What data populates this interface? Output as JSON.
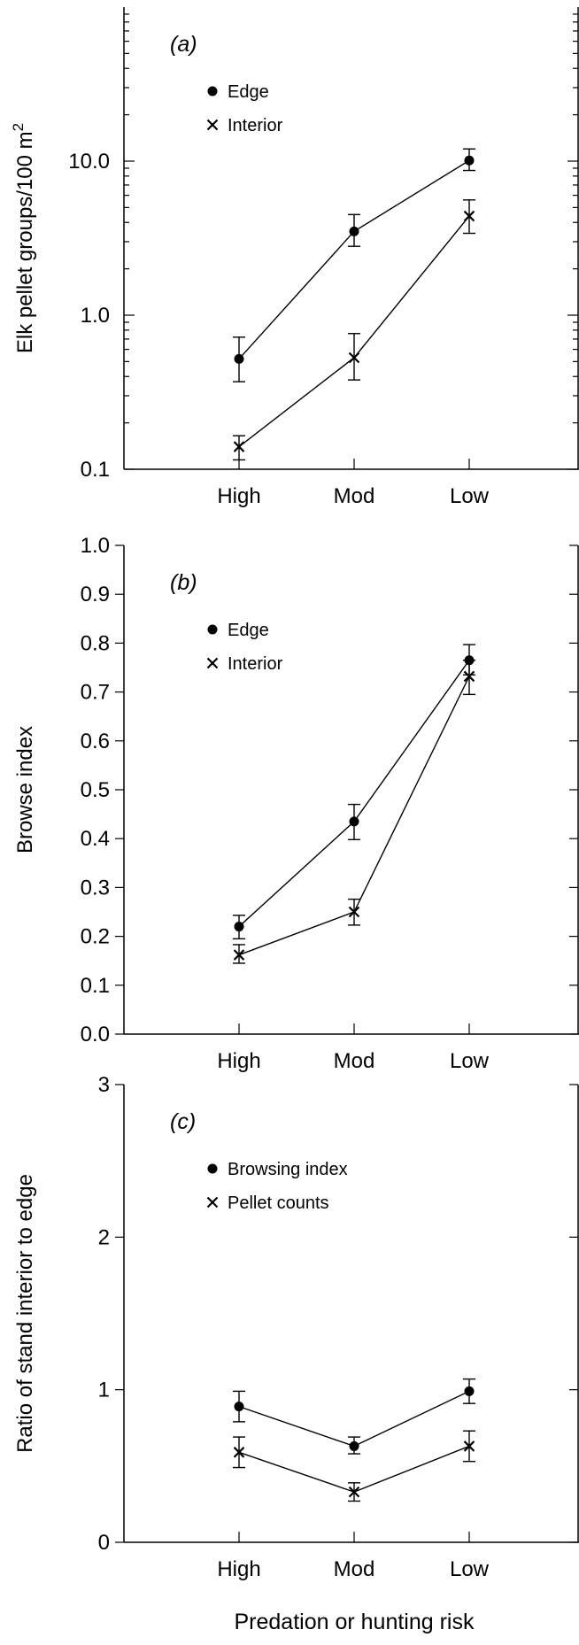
{
  "figure": {
    "xlabel": "Predation or hunting risk"
  },
  "chart_data": [
    {
      "type": "line",
      "panel_label": "(a)",
      "ylabel": "Elk pellet groups/100 m",
      "ylabel_superscript": "2",
      "yscale": "log",
      "ylim": [
        0.1,
        100
      ],
      "yticks": [
        0.1,
        1.0,
        10.0
      ],
      "ytick_labels": [
        "0.1",
        "1.0",
        "10.0"
      ],
      "categories": [
        "High",
        "Mod",
        "Low"
      ],
      "legend_position": "top-left",
      "grid": false,
      "series": [
        {
          "name": "Edge",
          "marker": "dot",
          "values": [
            0.52,
            3.5,
            10.1
          ],
          "err_low": [
            0.37,
            2.8,
            8.7
          ],
          "err_high": [
            0.72,
            4.5,
            12.0
          ]
        },
        {
          "name": "Interior",
          "marker": "cross",
          "values": [
            0.14,
            0.53,
            4.4
          ],
          "err_low": [
            0.115,
            0.38,
            3.4
          ],
          "err_high": [
            0.165,
            0.76,
            5.6
          ]
        }
      ]
    },
    {
      "type": "line",
      "panel_label": "(b)",
      "ylabel": "Browse index",
      "yscale": "linear",
      "ylim": [
        0,
        1.0
      ],
      "yticks": [
        0,
        0.1,
        0.2,
        0.3,
        0.4,
        0.5,
        0.6,
        0.7,
        0.8,
        0.9,
        1.0
      ],
      "ytick_labels": [
        "0.0",
        "0.1",
        "0.2",
        "0.3",
        "0.4",
        "0.5",
        "0.6",
        "0.7",
        "0.8",
        "0.9",
        "1.0"
      ],
      "categories": [
        "High",
        "Mod",
        "Low"
      ],
      "legend_position": "top-left",
      "grid": false,
      "series": [
        {
          "name": "Edge",
          "marker": "dot",
          "values": [
            0.22,
            0.435,
            0.765
          ],
          "err_low": [
            0.195,
            0.398,
            0.735
          ],
          "err_high": [
            0.243,
            0.47,
            0.797
          ]
        },
        {
          "name": "Interior",
          "marker": "cross",
          "values": [
            0.162,
            0.25,
            0.732
          ],
          "err_low": [
            0.145,
            0.223,
            0.695
          ],
          "err_high": [
            0.183,
            0.276,
            0.765
          ]
        }
      ]
    },
    {
      "type": "line",
      "panel_label": "(c)",
      "ylabel": "Ratio of stand interior to edge",
      "yscale": "linear",
      "ylim": [
        0,
        3
      ],
      "yticks": [
        0,
        1,
        2,
        3
      ],
      "ytick_labels": [
        "0",
        "1",
        "2",
        "3"
      ],
      "categories": [
        "High",
        "Mod",
        "Low"
      ],
      "legend_position": "top-left",
      "grid": false,
      "series": [
        {
          "name": "Browsing index",
          "marker": "dot",
          "values": [
            0.89,
            0.63,
            0.99
          ],
          "err_low": [
            0.79,
            0.58,
            0.91
          ],
          "err_high": [
            0.99,
            0.69,
            1.07
          ]
        },
        {
          "name": "Pellet counts",
          "marker": "cross",
          "values": [
            0.59,
            0.33,
            0.63
          ],
          "err_low": [
            0.49,
            0.27,
            0.53
          ],
          "err_high": [
            0.69,
            0.39,
            0.73
          ]
        }
      ]
    }
  ]
}
